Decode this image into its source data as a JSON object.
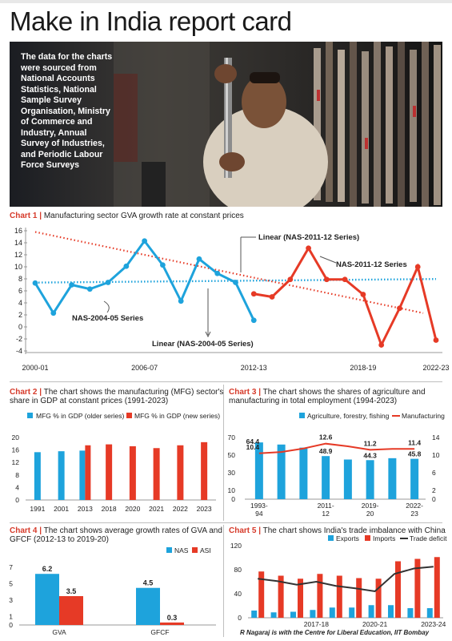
{
  "title": "Make in India report card",
  "photo_note": "The data for the charts were sourced from National Accounts Statistics, National Sample Survey Organisation, Ministry of Commerce and Industry, Annual Survey of Industries, and Periodic Labour Force Surveys",
  "credit": "R Nagaraj is with the Centre for Liberal Education, IIT Bombay",
  "colors": {
    "blue": "#1ea3dc",
    "red": "#e63a26",
    "accent": "#d63a2a",
    "dark": "#333333"
  },
  "chart1": {
    "label": "Chart 1 |",
    "caption": "Manufacturing sector GVA growth rate at constant prices"
  },
  "chart2": {
    "label": "Chart 2 |",
    "caption": "The chart shows the manufacturing (MFG) sector's",
    "caption2": "share in GDP at constant prices (1991-2023)"
  },
  "chart3": {
    "label": "Chart 3 |",
    "caption": "The chart shows the shares of agriculture and",
    "caption2": "manufacturing in total employment (1994-2023)"
  },
  "chart4": {
    "label": "Chart 4 |",
    "caption": "The chart shows average growth rates of GVA and",
    "caption2": "GFCF (2012-13 to 2019-20)"
  },
  "chart5": {
    "label": "Chart 5 |",
    "caption": "The chart shows India's trade imbalance with China"
  },
  "chart_data": [
    {
      "type": "line",
      "yticks": [
        -4,
        -2,
        0,
        2,
        4,
        6,
        8,
        10,
        12,
        14,
        16
      ],
      "ylim": [
        -4,
        16
      ],
      "xticks": [
        "2000-01",
        "2006-07",
        "2012-13",
        "2018-19",
        "2022-23"
      ],
      "series": [
        {
          "name": "NAS-2004-05 Series",
          "color": "#1ea3dc",
          "values": [
            7.3,
            2.3,
            7.0,
            6.3,
            7.4,
            10.1,
            14.3,
            10.3,
            4.3,
            11.3,
            8.9,
            7.4,
            1.1
          ]
        },
        {
          "name": "NAS-2011-12 Series",
          "color": "#e63a26",
          "values": [
            5.5,
            5.0,
            7.9,
            13.1,
            7.9,
            7.9,
            5.4,
            -3.0,
            3.1,
            10.0,
            -2.2
          ]
        }
      ],
      "trend_labels": [
        "Linear (NAS-2011-12 Series)",
        "Linear (NAS-2004-05 Series)"
      ],
      "series_labels": [
        "NAS-2004-05 Series",
        "NAS-2011-12 Series"
      ]
    },
    {
      "type": "bar",
      "categories": [
        "1991",
        "2001",
        "2013",
        "2018",
        "2020",
        "2021",
        "2022",
        "2023"
      ],
      "series": [
        {
          "name": "MFG % in GDP (older series)",
          "color": "#1ea3dc",
          "values": [
            15.3,
            15.6,
            15.8,
            null,
            null,
            null,
            null,
            null
          ]
        },
        {
          "name": "MFG % in GDP (new series)",
          "color": "#e63a26",
          "values": [
            null,
            null,
            17.5,
            17.8,
            17.2,
            16.6,
            17.5,
            18.5
          ]
        }
      ],
      "yticks": [
        0,
        4,
        8,
        12,
        16,
        20
      ],
      "ylim": [
        0,
        20
      ]
    },
    {
      "type": "bar",
      "categories": [
        "1993-94",
        "",
        "2011-12",
        "",
        "",
        "2019-20",
        "",
        "2022-23"
      ],
      "xlabels": [
        [
          "1993-",
          "94"
        ],
        [
          "2011-",
          "12"
        ],
        [
          "2019-",
          "20"
        ],
        [
          "2022-",
          "23"
        ]
      ],
      "series": [
        {
          "name": "Agriculture, forestry, fishing",
          "color": "#1ea3dc",
          "values": [
            64.4,
            62.0,
            58.5,
            48.9,
            45.0,
            44.3,
            46.5,
            45.8
          ]
        },
        {
          "name": "Manufacturing",
          "color": "#e63a26",
          "values": [
            10.4,
            10.7,
            11.5,
            12.6,
            12.0,
            11.2,
            11.4,
            11.4
          ]
        }
      ],
      "data_labels": {
        "agri": [
          "64.4",
          "48.9",
          "44.3",
          "45.8"
        ],
        "mfg": [
          "10.4",
          "12.6",
          "11.2",
          "11.4"
        ]
      },
      "yticks_left": [
        0,
        10,
        30,
        50,
        70
      ],
      "yticks_right": [
        0,
        2,
        6,
        10,
        14
      ]
    },
    {
      "type": "bar",
      "categories": [
        "GVA",
        "GFCF"
      ],
      "series": [
        {
          "name": "NAS",
          "color": "#1ea3dc",
          "values": [
            6.2,
            4.5
          ]
        },
        {
          "name": "ASI",
          "color": "#e63a26",
          "values": [
            3.5,
            0.3
          ]
        }
      ],
      "data_labels": [
        "6.2",
        "3.5",
        "4.5",
        "0.3"
      ],
      "yticks": [
        0,
        1,
        3,
        5,
        7
      ],
      "ylim": [
        0,
        7
      ]
    },
    {
      "type": "bar",
      "categories": [
        "2014-15",
        "2015-16",
        "2016-17",
        "2017-18",
        "2018-19",
        "2019-20",
        "2020-21",
        "2021-22",
        "2022-23",
        "2023-24"
      ],
      "xticks": [
        "2017-18",
        "2020-21",
        "2023-24"
      ],
      "series": [
        {
          "name": "Exports",
          "color": "#1ea3dc",
          "values": [
            12,
            9,
            10,
            13,
            17,
            17,
            21,
            21,
            16,
            16
          ]
        },
        {
          "name": "Imports",
          "color": "#e63a26",
          "values": [
            77,
            70,
            65,
            73,
            70,
            66,
            65,
            94,
            98,
            101
          ]
        },
        {
          "name": "Trade deficit",
          "color": "#333333",
          "values": [
            65,
            61,
            55,
            60,
            53,
            49,
            44,
            73,
            82,
            85
          ]
        }
      ],
      "yticks": [
        0,
        40,
        80,
        120
      ],
      "ylim": [
        0,
        120
      ]
    }
  ]
}
